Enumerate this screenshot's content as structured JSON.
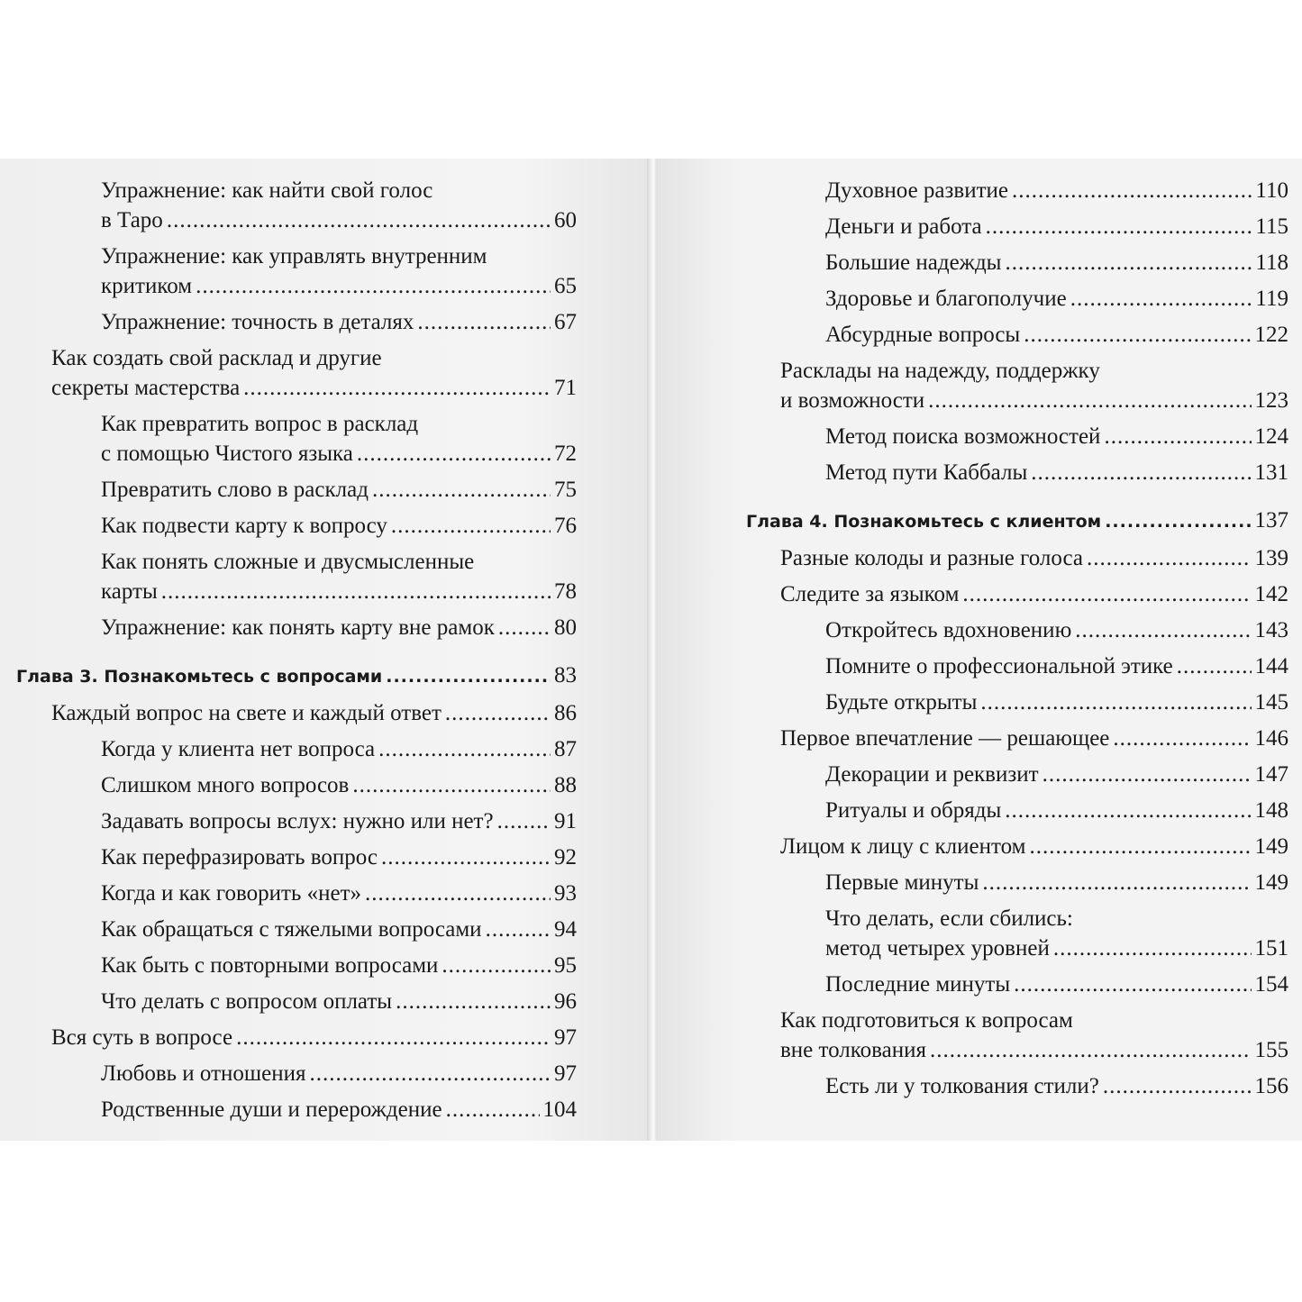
{
  "left_page": {
    "entries": [
      {
        "level": 2,
        "lines": [
          "Упражнение: как найти свой голос",
          "в Таро"
        ],
        "page": "60"
      },
      {
        "level": 2,
        "lines": [
          "Упражнение: как управлять внутренним",
          "критиком"
        ],
        "page": "65"
      },
      {
        "level": 2,
        "lines": [
          "Упражнение: точность в деталях"
        ],
        "page": "67"
      },
      {
        "level": 1,
        "lines": [
          "Как создать свой расклад и другие",
          "секреты мастерства"
        ],
        "page": "71"
      },
      {
        "level": 2,
        "lines": [
          "Как превратить вопрос в расклад",
          "с помощью Чистого языка"
        ],
        "page": "72"
      },
      {
        "level": 2,
        "lines": [
          "Превратить слово в расклад"
        ],
        "page": "75"
      },
      {
        "level": 2,
        "lines": [
          "Как подвести карту к вопросу"
        ],
        "page": "76"
      },
      {
        "level": 2,
        "lines": [
          "Как понять сложные и двусмысленные",
          "карты"
        ],
        "page": "78"
      },
      {
        "level": 2,
        "lines": [
          "Упражнение: как понять карту вне рамок"
        ],
        "page": "80"
      },
      {
        "level": 0,
        "lines": [
          "Глава 3. Познакомьтесь с вопросами"
        ],
        "page": "83"
      },
      {
        "level": 1,
        "lines": [
          "Каждый вопрос на свете и каждый ответ"
        ],
        "page": "86"
      },
      {
        "level": 2,
        "lines": [
          "Когда у клиента нет вопроса"
        ],
        "page": "87"
      },
      {
        "level": 2,
        "lines": [
          "Слишком много вопросов"
        ],
        "page": "88"
      },
      {
        "level": 2,
        "lines": [
          "Задавать вопросы вслух: нужно или нет?"
        ],
        "page": "91"
      },
      {
        "level": 2,
        "lines": [
          "Как перефразировать вопрос"
        ],
        "page": "92"
      },
      {
        "level": 2,
        "lines": [
          "Когда и как говорить «нет»"
        ],
        "page": "93"
      },
      {
        "level": 2,
        "lines": [
          "Как обращаться с тяжелыми вопросами"
        ],
        "page": "94"
      },
      {
        "level": 2,
        "lines": [
          "Как быть с повторными вопросами"
        ],
        "page": "95"
      },
      {
        "level": 2,
        "lines": [
          "Что делать с вопросом оплаты"
        ],
        "page": "96"
      },
      {
        "level": 1,
        "lines": [
          "Вся суть в вопросе"
        ],
        "page": "97"
      },
      {
        "level": 2,
        "lines": [
          "Любовь и отношения"
        ],
        "page": "97"
      },
      {
        "level": 2,
        "lines": [
          "Родственные души и перерождение"
        ],
        "page": "104"
      }
    ]
  },
  "right_page": {
    "entries": [
      {
        "level": 2,
        "lines": [
          "Духовное развитие"
        ],
        "page": "110"
      },
      {
        "level": 2,
        "lines": [
          "Деньги и работа"
        ],
        "page": "115"
      },
      {
        "level": 2,
        "lines": [
          "Большие надежды"
        ],
        "page": "118"
      },
      {
        "level": 2,
        "lines": [
          "Здоровье и благополучие"
        ],
        "page": "119"
      },
      {
        "level": 2,
        "lines": [
          "Абсурдные вопросы"
        ],
        "page": "122"
      },
      {
        "level": 1,
        "lines": [
          "Расклады на надежду, поддержку",
          "и возможности"
        ],
        "page": "123"
      },
      {
        "level": 2,
        "lines": [
          "Метод поиска возможностей"
        ],
        "page": "124"
      },
      {
        "level": 2,
        "lines": [
          "Метод пути Каббалы"
        ],
        "page": "131"
      },
      {
        "level": 0,
        "lines": [
          "Глава 4. Познакомьтесь с клиентом"
        ],
        "page": "137"
      },
      {
        "level": 1,
        "lines": [
          "Разные колоды и разные голоса"
        ],
        "page": "139"
      },
      {
        "level": 1,
        "lines": [
          "Следите за языком"
        ],
        "page": "142"
      },
      {
        "level": 2,
        "lines": [
          "Откройтесь вдохновению"
        ],
        "page": "143"
      },
      {
        "level": 2,
        "lines": [
          "Помните о профессиональной этике"
        ],
        "page": "144"
      },
      {
        "level": 2,
        "lines": [
          "Будьте открыты"
        ],
        "page": "145"
      },
      {
        "level": 1,
        "lines": [
          "Первое впечатление — решающее"
        ],
        "page": "146"
      },
      {
        "level": 2,
        "lines": [
          "Декорации и реквизит"
        ],
        "page": "147"
      },
      {
        "level": 2,
        "lines": [
          "Ритуалы и обряды"
        ],
        "page": "148"
      },
      {
        "level": 1,
        "lines": [
          "Лицом к лицу с клиентом"
        ],
        "page": "149"
      },
      {
        "level": 2,
        "lines": [
          "Первые минуты"
        ],
        "page": "149"
      },
      {
        "level": 2,
        "lines": [
          "Что делать, если сбились:",
          "метод четырех уровней"
        ],
        "page": "151"
      },
      {
        "level": 2,
        "lines": [
          "Последние минуты"
        ],
        "page": "154"
      },
      {
        "level": 1,
        "lines": [
          "Как подготовиться к вопросам",
          "вне толкования"
        ],
        "page": "155"
      },
      {
        "level": 2,
        "lines": [
          "Есть ли у толкования стили?"
        ],
        "page": "156"
      }
    ]
  }
}
